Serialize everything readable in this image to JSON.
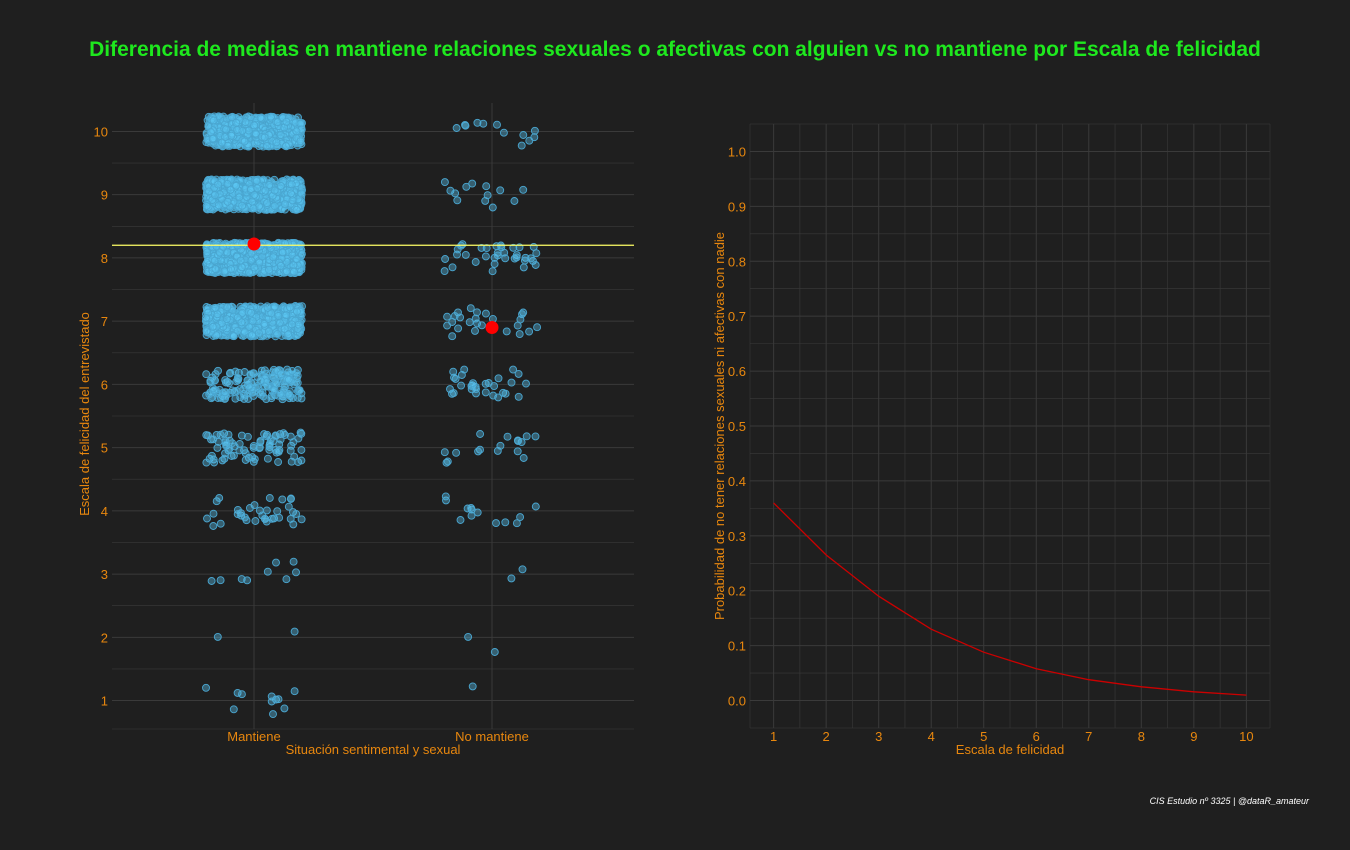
{
  "title": "Diferencia de medias en mantiene relaciones sexuales o afectivas con alguien vs no mantiene por Escala de felicidad",
  "caption": "CIS Estudio nº 3325 | @dataR_amateur",
  "colors": {
    "background": "#1f1f1f",
    "title": "#1ee81e",
    "text": "#e8870e",
    "grid": "#3a3a3a",
    "points_fill": "#5bc8f5",
    "points_stroke": "#4aa6d0",
    "mean_point": "#ff0000",
    "mean_line": "#ffff66",
    "curve": "#cc0000",
    "caption": "#ffffff"
  },
  "chart_data": [
    {
      "type": "scatter",
      "subtype": "jitter",
      "xlabel": "Situación sentimental y sexual",
      "ylabel": "Escala de felicidad del entrevistado",
      "categories": [
        "Mantiene",
        "No mantiene"
      ],
      "y_ticks": [
        1,
        2,
        3,
        4,
        5,
        6,
        7,
        8,
        9,
        10
      ],
      "ylim": [
        0.55,
        10.45
      ],
      "grid": true,
      "overall_mean_line": 8.2,
      "means": [
        {
          "category": "Mantiene",
          "value": 8.22
        },
        {
          "category": "No mantiene",
          "value": 6.9
        }
      ],
      "approx_counts": {
        "Mantiene": {
          "1": 11,
          "2": 2,
          "3": 9,
          "4": 35,
          "5": 80,
          "6": 170,
          "7": 600,
          "8": 900,
          "9": 700,
          "10": 600
        },
        "No mantiene": {
          "1": 1,
          "2": 2,
          "3": 2,
          "4": 13,
          "5": 17,
          "6": 30,
          "7": 25,
          "8": 35,
          "9": 13,
          "10": 12
        }
      }
    },
    {
      "type": "line",
      "xlabel": "Escala de felicidad",
      "ylabel": "Probabilidad de no tener relaciones sexuales ni afectivas con nadie",
      "x": [
        1,
        2,
        3,
        4,
        5,
        6,
        7,
        8,
        9,
        10
      ],
      "y": [
        0.36,
        0.265,
        0.19,
        0.13,
        0.088,
        0.058,
        0.038,
        0.025,
        0.016,
        0.01
      ],
      "x_ticks": [
        1,
        2,
        3,
        4,
        5,
        6,
        7,
        8,
        9,
        10
      ],
      "y_ticks": [
        0.0,
        0.1,
        0.2,
        0.3,
        0.4,
        0.5,
        0.6,
        0.7,
        0.8,
        0.9,
        1.0
      ],
      "y_tick_labels": [
        "0.0",
        "0.1",
        "0.2",
        "0.3",
        "0.4",
        "0.5",
        "0.6",
        "0.7",
        "0.8",
        "0.9",
        "1.0"
      ],
      "xlim": [
        0.55,
        10.45
      ],
      "ylim": [
        -0.05,
        1.05
      ],
      "grid": true
    }
  ]
}
